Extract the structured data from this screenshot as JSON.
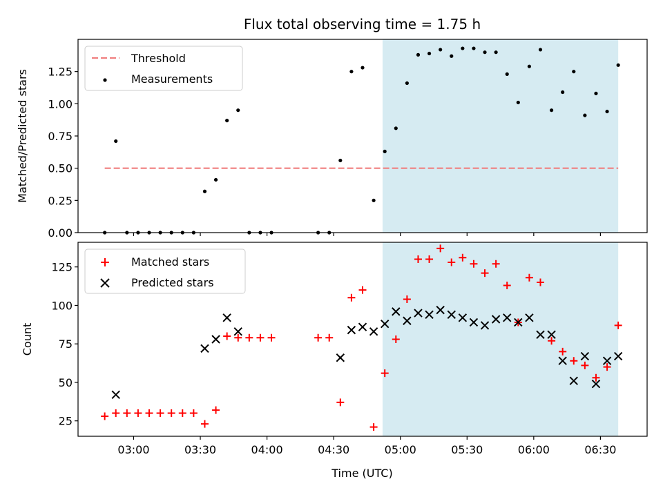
{
  "chart_data": [
    {
      "type": "scatter",
      "title": "Flux total observing time = 1.75 h",
      "xlabel": "",
      "ylabel": "Matched/Predicted stars",
      "ylim": [
        0,
        1.5
      ],
      "yticks": [
        "0.00",
        "0.25",
        "0.50",
        "0.75",
        "1.00",
        "1.25"
      ],
      "xlim": [
        "02:35",
        "06:51"
      ],
      "shaded_region": [
        "04:52",
        "06:38"
      ],
      "threshold": 0.5,
      "legend_position": "top-left",
      "legend": [
        "Threshold",
        "Measurements"
      ],
      "series": [
        {
          "name": "Threshold",
          "style": "dashed-line",
          "color": "#f07f7f",
          "x": [
            "02:47",
            "06:38"
          ],
          "y": [
            0.5,
            0.5
          ]
        },
        {
          "name": "Measurements",
          "style": "dot",
          "color": "#000000",
          "x": [
            "02:47",
            "02:52",
            "02:57",
            "03:02",
            "03:07",
            "03:12",
            "03:17",
            "03:22",
            "03:27",
            "03:32",
            "03:37",
            "03:42",
            "03:47",
            "03:52",
            "03:57",
            "04:02",
            "04:23",
            "04:28",
            "04:33",
            "04:38",
            "04:43",
            "04:48",
            "04:53",
            "04:58",
            "05:03",
            "05:08",
            "05:13",
            "05:18",
            "05:23",
            "05:28",
            "05:33",
            "05:38",
            "05:43",
            "05:48",
            "05:53",
            "05:58",
            "06:03",
            "06:08",
            "06:13",
            "06:18",
            "06:23",
            "06:28",
            "06:33",
            "06:38"
          ],
          "y": [
            0.0,
            0.71,
            0.0,
            0.0,
            0.0,
            0.0,
            0.0,
            0.0,
            0.0,
            0.32,
            0.41,
            0.87,
            0.95,
            0.0,
            0.0,
            0.0,
            0.0,
            0.0,
            0.56,
            1.25,
            1.28,
            0.25,
            0.63,
            0.81,
            1.16,
            1.38,
            1.39,
            1.42,
            1.37,
            1.43,
            1.43,
            1.4,
            1.4,
            1.23,
            1.01,
            1.29,
            1.42,
            0.95,
            1.09,
            1.25,
            0.91,
            1.08,
            0.94,
            1.3
          ]
        }
      ]
    },
    {
      "type": "scatter",
      "title": "",
      "xlabel": "Time (UTC)",
      "ylabel": "Count",
      "ylim": [
        15,
        141
      ],
      "yticks": [
        "25",
        "50",
        "75",
        "100",
        "125"
      ],
      "xlim": [
        "02:35",
        "06:51"
      ],
      "xticks": [
        "03:00",
        "03:30",
        "04:00",
        "04:30",
        "05:00",
        "05:30",
        "06:00",
        "06:30"
      ],
      "shaded_region": [
        "04:52",
        "06:38"
      ],
      "legend_position": "top-left",
      "legend": [
        "Matched stars",
        "Predicted stars"
      ],
      "series": [
        {
          "name": "Matched stars",
          "style": "plus",
          "color": "#ff0000",
          "x": [
            "02:47",
            "02:52",
            "02:57",
            "03:02",
            "03:07",
            "03:12",
            "03:17",
            "03:22",
            "03:27",
            "03:32",
            "03:37",
            "03:42",
            "03:47",
            "03:52",
            "03:57",
            "04:02",
            "04:23",
            "04:28",
            "04:33",
            "04:38",
            "04:43",
            "04:48",
            "04:53",
            "04:58",
            "05:03",
            "05:08",
            "05:13",
            "05:18",
            "05:23",
            "05:28",
            "05:33",
            "05:38",
            "05:43",
            "05:48",
            "05:53",
            "05:58",
            "06:03",
            "06:08",
            "06:13",
            "06:18",
            "06:23",
            "06:28",
            "06:33",
            "06:38"
          ],
          "y": [
            28,
            30,
            30,
            30,
            30,
            30,
            30,
            30,
            30,
            23,
            32,
            80,
            79,
            79,
            79,
            79,
            79,
            79,
            37,
            105,
            110,
            21,
            56,
            78,
            104,
            130,
            130,
            137,
            128,
            131,
            127,
            121,
            127,
            113,
            89,
            118,
            115,
            77,
            70,
            64,
            61,
            53,
            60,
            87
          ]
        },
        {
          "name": "Predicted stars",
          "style": "x",
          "color": "#000000",
          "x": [
            "02:52",
            "03:32",
            "03:37",
            "03:42",
            "03:47",
            "04:33",
            "04:38",
            "04:43",
            "04:48",
            "04:53",
            "04:58",
            "05:03",
            "05:08",
            "05:13",
            "05:18",
            "05:23",
            "05:28",
            "05:33",
            "05:38",
            "05:43",
            "05:48",
            "05:53",
            "05:58",
            "06:03",
            "06:08",
            "06:13",
            "06:18",
            "06:23",
            "06:28",
            "06:33",
            "06:38"
          ],
          "y": [
            42,
            72,
            78,
            92,
            83,
            66,
            84,
            86,
            83,
            88,
            96,
            90,
            95,
            94,
            97,
            94,
            92,
            89,
            87,
            91,
            92,
            89,
            92,
            81,
            81,
            64,
            51,
            67,
            49,
            64,
            67
          ]
        }
      ]
    }
  ]
}
